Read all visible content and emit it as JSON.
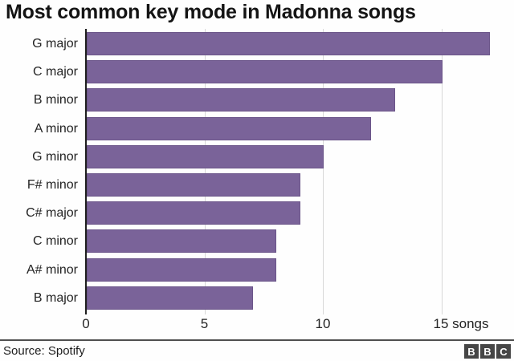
{
  "title": "Most common key mode in Madonna songs",
  "chart_data": {
    "type": "bar",
    "orientation": "horizontal",
    "title": "Most common key mode in Madonna songs",
    "categories": [
      "G major",
      "C major",
      "B minor",
      "A minor",
      "G minor",
      "F# minor",
      "C# major",
      "C minor",
      "A# minor",
      "B major"
    ],
    "values": [
      17,
      15,
      13,
      12,
      10,
      9,
      9,
      8,
      8,
      7
    ],
    "xlim": [
      0,
      18
    ],
    "x_ticks": [
      {
        "value": 0,
        "label": "0"
      },
      {
        "value": 5,
        "label": "5"
      },
      {
        "value": 10,
        "label": "10"
      },
      {
        "value": 15,
        "label": "15 songs"
      }
    ],
    "unit": "songs",
    "grid": true,
    "legend": "none",
    "bar_color": "#7a6399",
    "gridline_color": "#d8d8d8",
    "axis_color": "#1f1f1f"
  },
  "footer": {
    "source": "Source: Spotify",
    "logo_letters": [
      "B",
      "B",
      "C"
    ]
  }
}
